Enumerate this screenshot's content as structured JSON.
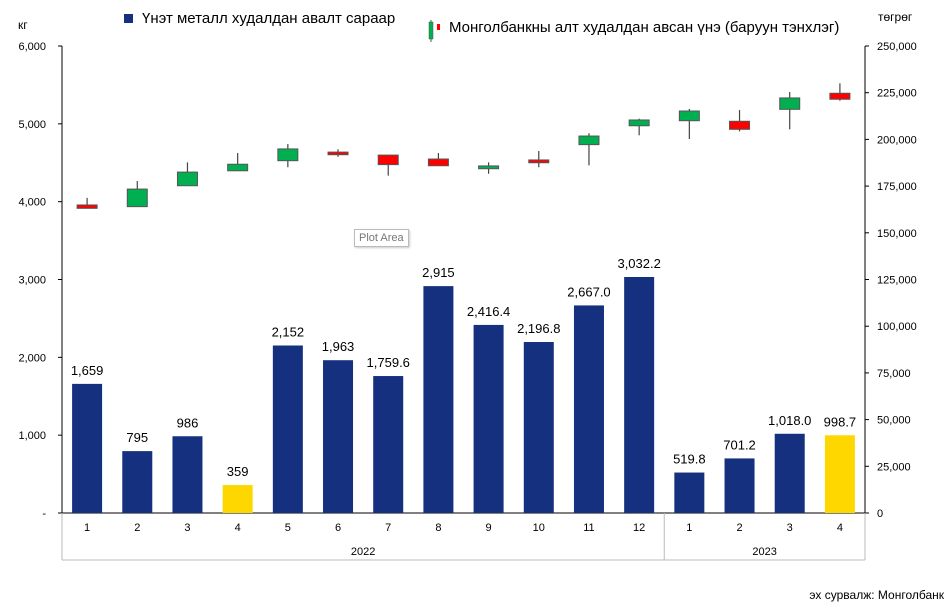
{
  "chart_data": {
    "type": "bar",
    "title": "",
    "left_unit": "кг",
    "right_unit": "төгрөг",
    "categories": [
      "1",
      "2",
      "3",
      "4",
      "5",
      "6",
      "7",
      "8",
      "9",
      "10",
      "11",
      "12",
      "1",
      "2",
      "3",
      "4"
    ],
    "groups": [
      {
        "label": "2022",
        "count": 12
      },
      {
        "label": "2023",
        "count": 4
      }
    ],
    "left_axis": {
      "ylim": [
        0,
        6000
      ],
      "ticks": [
        "-",
        "1,000",
        "2,000",
        "3,000",
        "4,000",
        "5,000",
        "6,000"
      ]
    },
    "right_axis": {
      "ylim": [
        0,
        250000
      ],
      "ticks": [
        "0",
        "25,000",
        "50,000",
        "75,000",
        "100,000",
        "125,000",
        "150,000",
        "175,000",
        "200,000",
        "225,000",
        "250,000"
      ]
    },
    "series": [
      {
        "name": "Үнэт металл худалдан авалт сараар",
        "type": "bar",
        "axis": "left",
        "color": "#14307f",
        "highlight_color": "#FFD700",
        "highlight_index": [
          3,
          15
        ],
        "values": [
          1659,
          795,
          986,
          359,
          2152,
          1963,
          1759.6,
          2915,
          2416.4,
          2196.8,
          2667.0,
          3032.2,
          519.8,
          701.2,
          1018.0,
          998.7
        ],
        "labels": [
          "1,659",
          "795",
          "986",
          "359",
          "2,152",
          "1,963",
          "1,759.6",
          "2,915",
          "2,416.4",
          "2,196.8",
          "2,667.0",
          "3,032.2",
          "519.8",
          "701.2",
          "1,018.0",
          "998.7"
        ]
      },
      {
        "name": "Монголбанкны алт худалдан авсан үнэ (баруун тэнхлэг)",
        "type": "candlestick",
        "axis": "right",
        "up_color": "#00B050",
        "down_color": "#FF0000",
        "ohlc": [
          [
            164900,
            168700,
            163100,
            163100
          ],
          [
            164000,
            177700,
            164000,
            173400
          ],
          [
            175200,
            187700,
            175200,
            182500
          ],
          [
            183200,
            192700,
            183200,
            186700
          ],
          [
            188600,
            197500,
            185100,
            194900
          ],
          [
            193200,
            194700,
            190700,
            191800
          ],
          [
            191600,
            191600,
            180600,
            186500
          ],
          [
            189500,
            192700,
            185900,
            185900
          ],
          [
            184300,
            187700,
            181600,
            185800
          ],
          [
            189000,
            193800,
            185100,
            187500
          ],
          [
            197200,
            203300,
            186100,
            201800
          ],
          [
            207300,
            211100,
            202200,
            210400
          ],
          [
            210000,
            216300,
            200200,
            215200
          ],
          [
            209700,
            215700,
            204300,
            205400
          ],
          [
            216100,
            225400,
            205400,
            222200
          ],
          [
            224700,
            230000,
            220700,
            221500
          ]
        ]
      }
    ],
    "tooltip": "Plot Area",
    "source": "эх сурвалж: Монголбанк"
  }
}
